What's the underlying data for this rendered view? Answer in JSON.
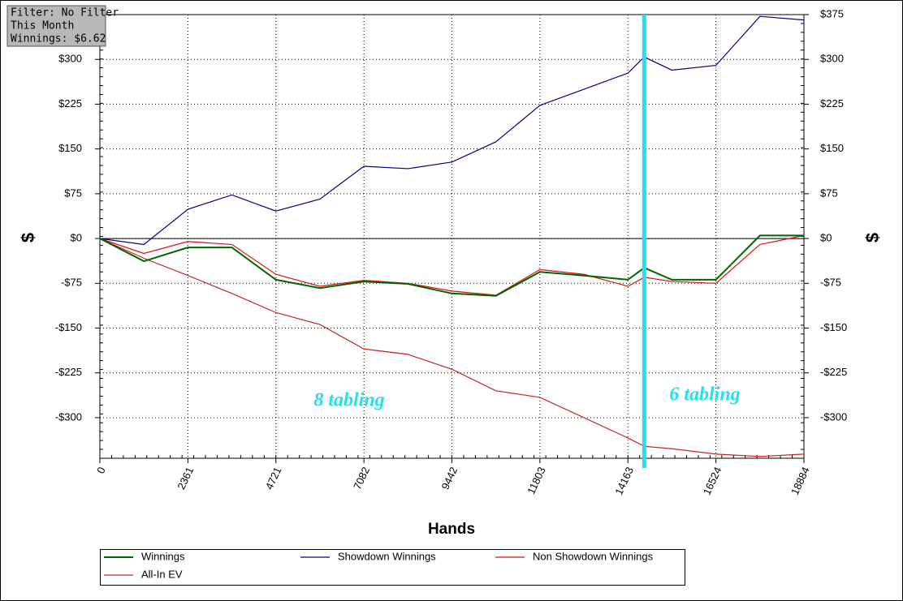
{
  "chart_data": {
    "type": "line",
    "info_box": [
      "Filter: No Filter",
      "This Month",
      "Winnings: $6.62"
    ],
    "xlabel": "Hands",
    "ylabel": "$",
    "x": [
      0,
      1180,
      2361,
      3541,
      4721,
      5902,
      7082,
      8262,
      9442,
      10623,
      11803,
      12983,
      14163,
      14600,
      15344,
      16524,
      17704,
      18884
    ],
    "series": [
      {
        "name": "Winnings",
        "color": "#006400",
        "values": [
          0,
          -38,
          -15,
          -15,
          -69,
          -83,
          -72,
          -76,
          -92,
          -96,
          -56,
          -62,
          -69,
          -49,
          -69,
          -69,
          5,
          5
        ]
      },
      {
        "name": "Showdown Winnings",
        "color": "#00008b",
        "values": [
          0,
          -10,
          49,
          73,
          46,
          66,
          121,
          117,
          128,
          162,
          223,
          250,
          277,
          304,
          282,
          290,
          372,
          366
        ]
      },
      {
        "name": "Non Showdown Winnings",
        "color": "#dd1111",
        "values": [
          0,
          -25,
          -5,
          -10,
          -60,
          -80,
          -70,
          -75,
          -88,
          -95,
          -52,
          -60,
          -80,
          -65,
          -72,
          -75,
          -10,
          5
        ]
      },
      {
        "name": "All-In EV",
        "color": "#cc2222",
        "values": [
          0,
          -33,
          -62,
          -92,
          -124,
          -144,
          -185,
          -194,
          -219,
          -255,
          -266,
          -300,
          -334,
          -348,
          -352,
          -361,
          -365,
          -361
        ]
      }
    ],
    "xlim": [
      0,
      18884
    ],
    "xticks": [
      0,
      2361,
      4721,
      7082,
      9442,
      11803,
      14163,
      16524,
      18884
    ],
    "ylim": [
      -368,
      375
    ],
    "yticks": [
      {
        "value": -300,
        "label": "-$300"
      },
      {
        "value": -225,
        "label": "-$225"
      },
      {
        "value": -150,
        "label": "-$150"
      },
      {
        "value": -75,
        "label": "-$75"
      },
      {
        "value": 0,
        "label": "$0"
      },
      {
        "value": 75,
        "label": "$75"
      },
      {
        "value": 150,
        "label": "$150"
      },
      {
        "value": 225,
        "label": "$225"
      },
      {
        "value": 300,
        "label": "$300"
      },
      {
        "value": 375,
        "label": "$375"
      }
    ],
    "grid": true,
    "vline": {
      "x": 14600,
      "color": "#22e0ee"
    },
    "annotations": [
      "8 tabling",
      "6 tabling"
    ]
  }
}
